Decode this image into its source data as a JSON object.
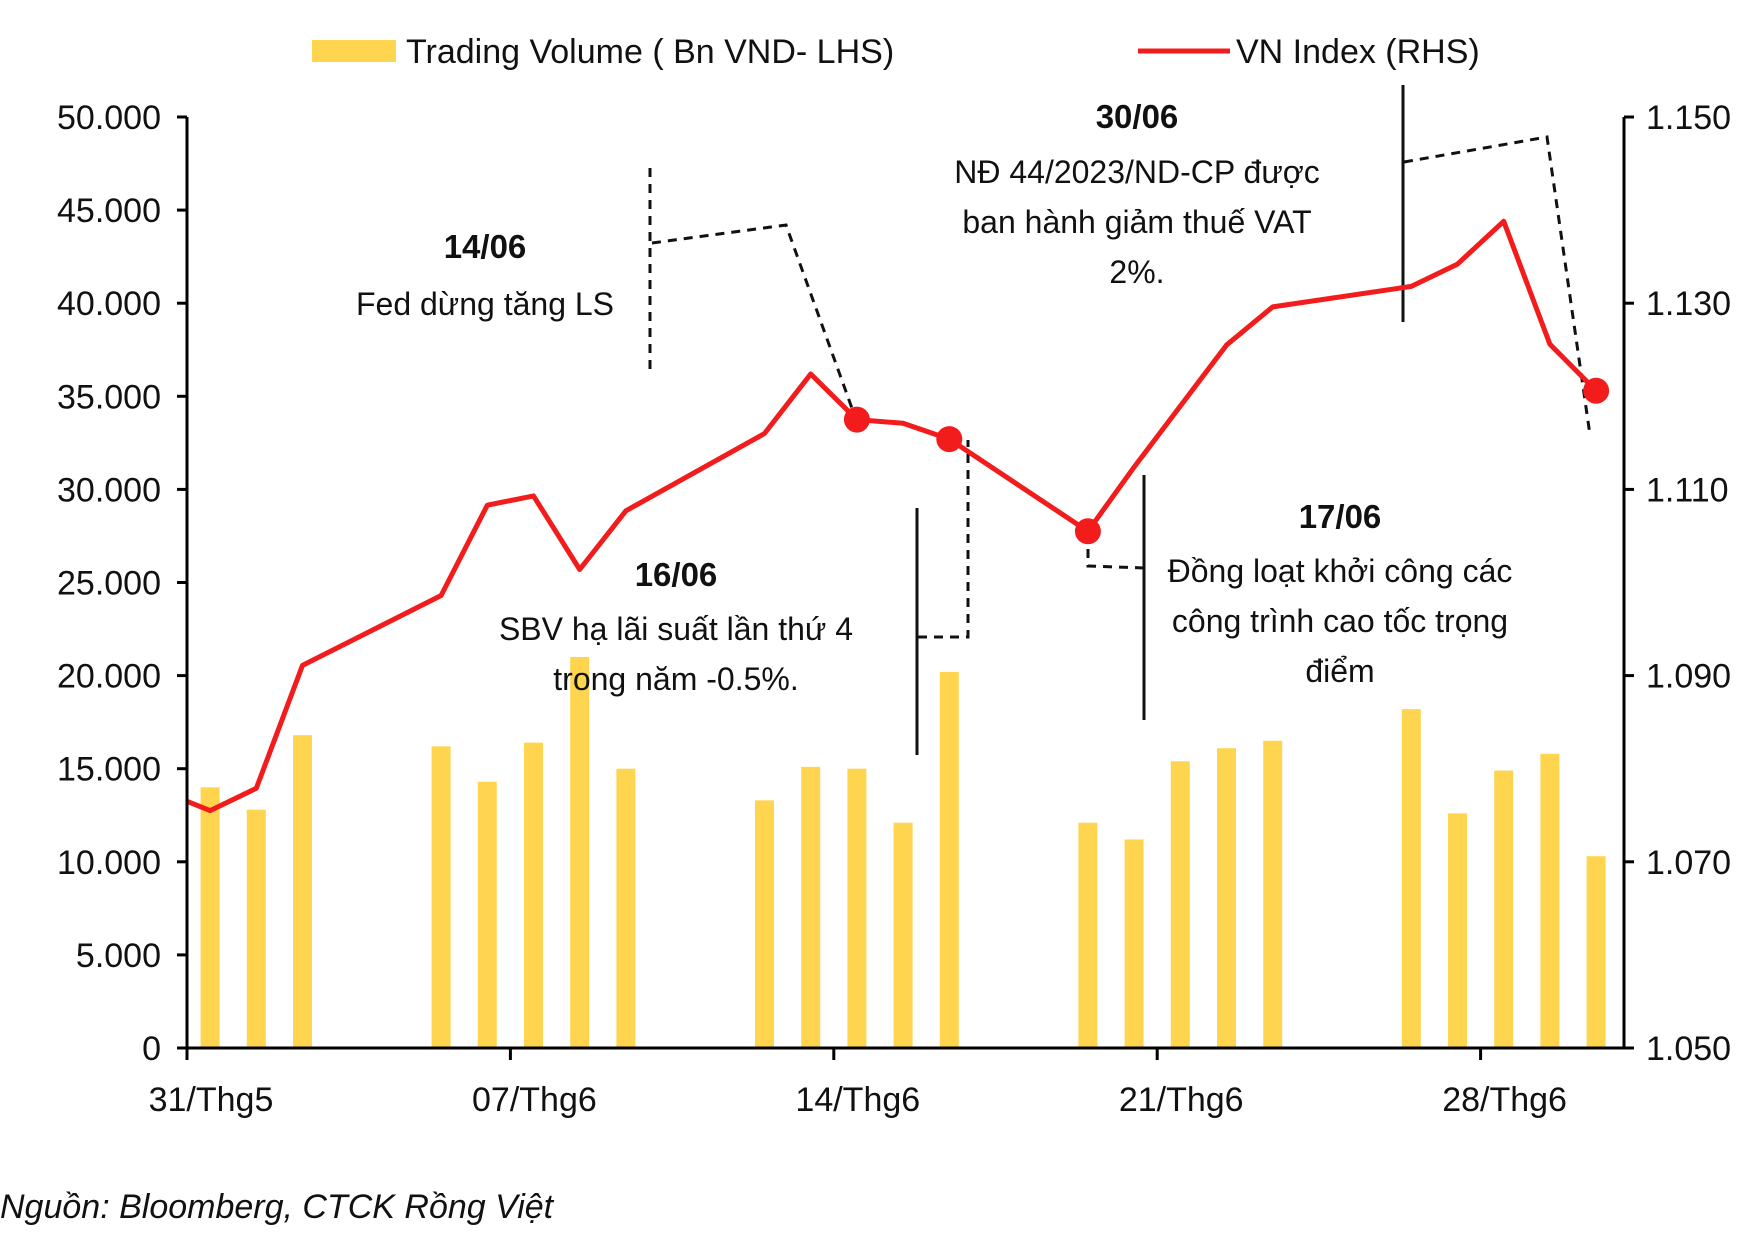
{
  "chart_data": {
    "type": "bar+line",
    "legend": {
      "position": "top",
      "items": [
        "Trading Volume ( Bn VND- LHS)",
        "VN Index (RHS)"
      ]
    },
    "colors": {
      "bars": "#FFD54F",
      "line": "#F21C1C",
      "axis": "#000000",
      "annotation": "#111111"
    },
    "left_axis": {
      "min": 0,
      "max": 50000,
      "step": 5000,
      "tick_labels": [
        "0",
        "5.000",
        "10.000",
        "15.000",
        "20.000",
        "25.000",
        "30.000",
        "35.000",
        "40.000",
        "45.000",
        "50.000"
      ]
    },
    "right_axis": {
      "min": 1050,
      "max": 1150,
      "step": 20,
      "tick_labels": [
        "1.050",
        "1.070",
        "1.090",
        "1.110",
        "1.130",
        "1.150"
      ]
    },
    "x_tick_labels": [
      "31/Thg5",
      "07/Thg6",
      "14/Thg6",
      "21/Thg6",
      "28/Thg6"
    ],
    "x_tick_days": [
      0,
      7,
      14,
      21,
      28
    ],
    "grid": false,
    "series": [
      {
        "name": "Trading Volume ( Bn VND- LHS)",
        "kind": "bar",
        "axis": "left",
        "points": [
          {
            "day": 0,
            "value": 14000
          },
          {
            "day": 1,
            "value": 12800
          },
          {
            "day": 2,
            "value": 16800
          },
          {
            "day": 5,
            "value": 16200
          },
          {
            "day": 6,
            "value": 14300
          },
          {
            "day": 7,
            "value": 16400
          },
          {
            "day": 8,
            "value": 21000
          },
          {
            "day": 9,
            "value": 15000
          },
          {
            "day": 12,
            "value": 13300
          },
          {
            "day": 13,
            "value": 15100
          },
          {
            "day": 14,
            "value": 15000
          },
          {
            "day": 15,
            "value": 12100
          },
          {
            "day": 16,
            "value": 20200
          },
          {
            "day": 19,
            "value": 12100
          },
          {
            "day": 20,
            "value": 11200
          },
          {
            "day": 21,
            "value": 15400
          },
          {
            "day": 22,
            "value": 16100
          },
          {
            "day": 23,
            "value": 16500
          },
          {
            "day": 26,
            "value": 18200
          },
          {
            "day": 27,
            "value": 12600
          },
          {
            "day": 28,
            "value": 14900
          },
          {
            "day": 29,
            "value": 15800
          },
          {
            "day": 30,
            "value": 10300
          }
        ]
      },
      {
        "name": "VN Index (RHS)",
        "kind": "line",
        "axis": "right",
        "points": [
          {
            "day": 0,
            "value": 1076.5
          },
          {
            "day": 0.5,
            "value": 1075.5
          },
          {
            "day": 1.5,
            "value": 1077.9
          },
          {
            "day": 2.5,
            "value": 1091.1
          },
          {
            "day": 5.5,
            "value": 1098.6
          },
          {
            "day": 6.5,
            "value": 1108.3
          },
          {
            "day": 7.5,
            "value": 1109.3
          },
          {
            "day": 8.5,
            "value": 1101.4
          },
          {
            "day": 9.5,
            "value": 1107.7
          },
          {
            "day": 12.5,
            "value": 1116.0
          },
          {
            "day": 13.5,
            "value": 1122.4
          },
          {
            "day": 14.5,
            "value": 1117.5
          },
          {
            "day": 15.5,
            "value": 1117.1
          },
          {
            "day": 16.5,
            "value": 1115.4
          },
          {
            "day": 19.5,
            "value": 1105.5
          },
          {
            "day": 20.5,
            "value": 1112.4
          },
          {
            "day": 22.5,
            "value": 1125.5
          },
          {
            "day": 23.5,
            "value": 1129.6
          },
          {
            "day": 26.5,
            "value": 1131.8
          },
          {
            "day": 27.5,
            "value": 1134.2
          },
          {
            "day": 28.5,
            "value": 1138.8
          },
          {
            "day": 29.5,
            "value": 1125.6
          },
          {
            "day": 30.5,
            "value": 1120.6
          }
        ],
        "highlighted_points": [
          {
            "day": 14.5,
            "value": 1117.5
          },
          {
            "day": 16.5,
            "value": 1115.4
          },
          {
            "day": 19.5,
            "value": 1105.5
          },
          {
            "day": 30.5,
            "value": 1120.6
          }
        ]
      }
    ],
    "annotations": [
      {
        "date": "14/06",
        "lines": [
          "Fed dừng tăng LS"
        ]
      },
      {
        "date": "16/06",
        "lines": [
          "SBV hạ lãi suất lần thứ 4",
          "trong năm -0.5%."
        ]
      },
      {
        "date": "30/06",
        "lines": [
          "NĐ 44/2023/ND-CP được",
          "ban hành giảm thuế VAT",
          "2%."
        ]
      },
      {
        "date": "17/06",
        "lines": [
          "Đồng loạt khởi công các",
          "công trình cao tốc trọng",
          "điểm"
        ]
      }
    ]
  },
  "source": "Nguồn: Bloomberg, CTCK Rồng Việt"
}
